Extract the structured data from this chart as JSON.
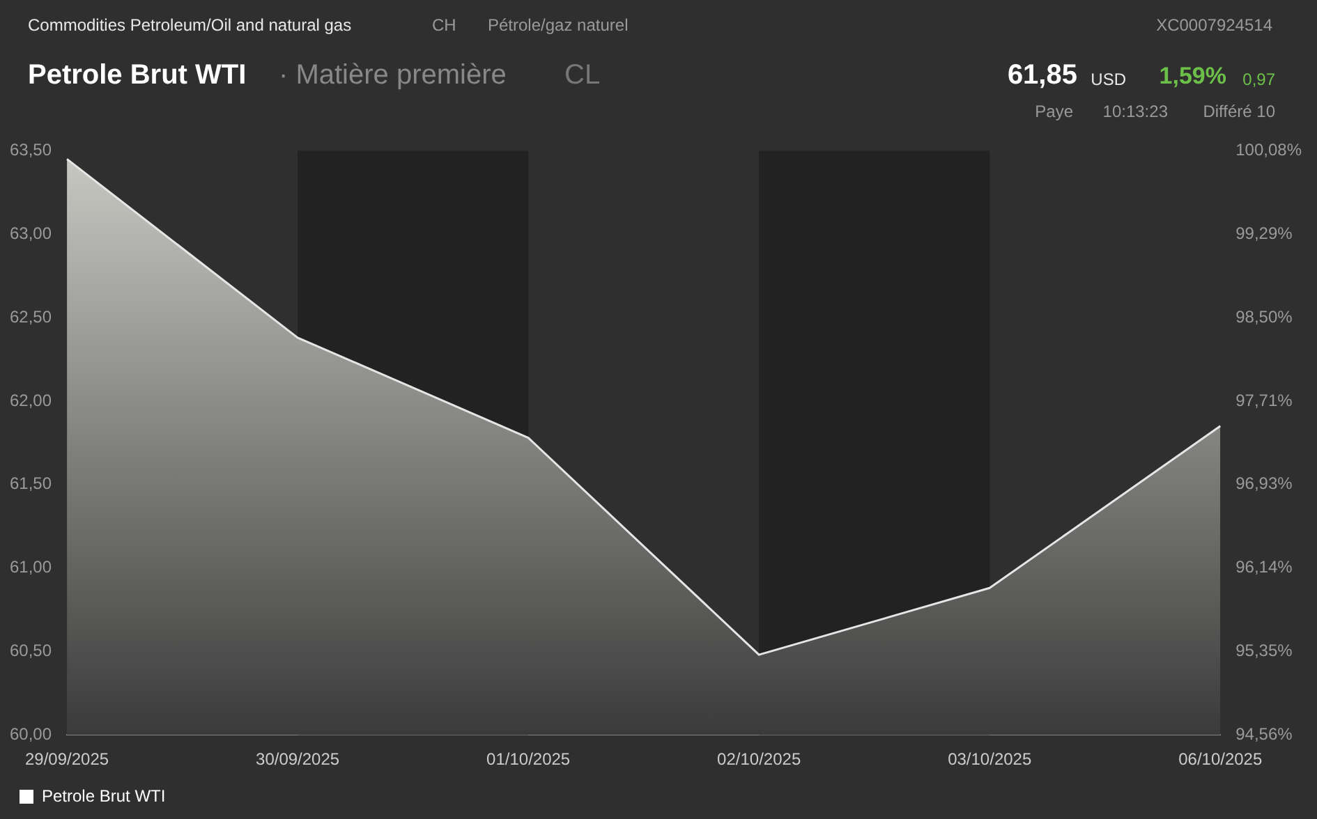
{
  "chart_data": {
    "type": "area",
    "title": "Petrole Brut WTI",
    "subtitle": "· Matière première",
    "annotations": [
      "Commodities Petroleum/Oil and natural gas",
      "CH",
      "Pétrole/gaz naturel",
      "XC0007924514",
      "CL",
      "61,85",
      "USD",
      "1,59%",
      "0,97",
      "Paye",
      "10:13:23",
      "Différé 10"
    ],
    "categories": [
      "29/09/2025",
      "30/09/2025",
      "01/10/2025",
      "02/10/2025",
      "03/10/2025",
      "06/10/2025"
    ],
    "series": [
      {
        "name": "Petrole Brut WTI",
        "color": "#e6e6e6",
        "values": [
          63.45,
          62.38,
          61.78,
          60.48,
          60.88,
          61.85
        ]
      }
    ],
    "ylim": [
      60,
      63.5
    ],
    "yticks": [
      {
        "value": 60,
        "label": "60,00"
      },
      {
        "value": 60.5,
        "label": "60,50"
      },
      {
        "value": 61,
        "label": "61,00"
      },
      {
        "value": 61.5,
        "label": "61,50"
      },
      {
        "value": 62,
        "label": "62,00"
      },
      {
        "value": 62.5,
        "label": "62,50"
      },
      {
        "value": 63,
        "label": "63,00"
      },
      {
        "value": 63.5,
        "label": "63,50"
      }
    ],
    "y2lim": [
      94.56,
      100.08
    ],
    "y2ticks": [
      {
        "value": 94.56,
        "label": "94,56%"
      },
      {
        "value": 95.35,
        "label": "95,35%"
      },
      {
        "value": 96.14,
        "label": "96,14%"
      },
      {
        "value": 96.93,
        "label": "96,93%"
      },
      {
        "value": 97.71,
        "label": "97,71%"
      },
      {
        "value": 98.5,
        "label": "98,50%"
      },
      {
        "value": 99.29,
        "label": "99,29%"
      },
      {
        "value": 100.08,
        "label": "100,08%"
      }
    ],
    "bands": [
      {
        "axis": "x",
        "from": "30/09/2025",
        "to": "01/10/2025",
        "color": "#222222"
      },
      {
        "axis": "x",
        "from": "02/10/2025",
        "to": "03/10/2025",
        "color": "#222222"
      }
    ],
    "grid": false,
    "legend": "bottom left"
  }
}
